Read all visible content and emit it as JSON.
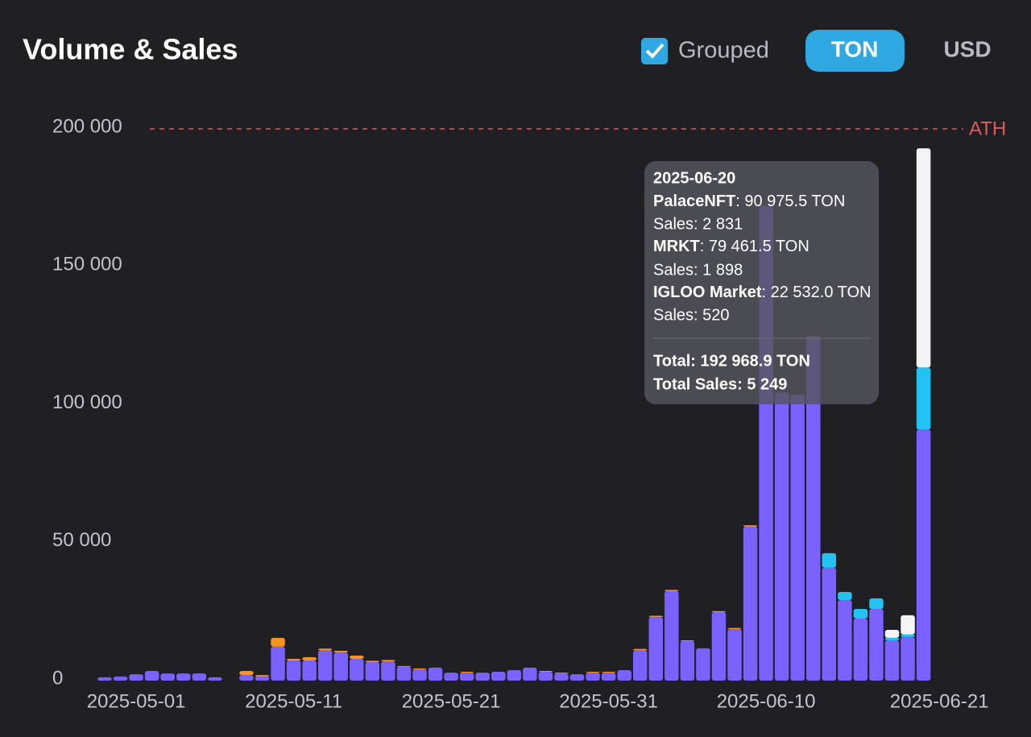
{
  "chart_data": {
    "type": "bar",
    "stacked": true,
    "title": "Volume & Sales",
    "controls": {
      "grouped": "Grouped",
      "ton": "TON",
      "usd": "USD"
    },
    "x": [
      "2025-04-29",
      "2025-04-30",
      "2025-05-01",
      "2025-05-02",
      "2025-05-03",
      "2025-05-04",
      "2025-05-05",
      "2025-05-06",
      "2025-05-07",
      "2025-05-08",
      "2025-05-09",
      "2025-05-10",
      "2025-05-11",
      "2025-05-12",
      "2025-05-13",
      "2025-05-14",
      "2025-05-15",
      "2025-05-16",
      "2025-05-17",
      "2025-05-18",
      "2025-05-19",
      "2025-05-20",
      "2025-05-21",
      "2025-05-22",
      "2025-05-23",
      "2025-05-24",
      "2025-05-25",
      "2025-05-26",
      "2025-05-27",
      "2025-05-28",
      "2025-05-29",
      "2025-05-30",
      "2025-05-31",
      "2025-06-01",
      "2025-06-02",
      "2025-06-03",
      "2025-06-04",
      "2025-06-05",
      "2025-06-06",
      "2025-06-07",
      "2025-06-08",
      "2025-06-09",
      "2025-06-10",
      "2025-06-11",
      "2025-06-12",
      "2025-06-13",
      "2025-06-14",
      "2025-06-15",
      "2025-06-16",
      "2025-06-17",
      "2025-06-18",
      "2025-06-19",
      "2025-06-20"
    ],
    "xticks": [
      "2025-05-01",
      "2025-05-11",
      "2025-05-21",
      "2025-05-31",
      "2025-06-10",
      "2025-06-21"
    ],
    "ylim": [
      0,
      200000
    ],
    "yticks": [
      0,
      {
        "value": 50000,
        "label": "50 000"
      },
      {
        "value": 100000,
        "label": "100 000"
      },
      {
        "value": 150000,
        "label": "150 000"
      },
      {
        "value": 200000,
        "label": "200 000"
      }
    ],
    "ath": {
      "label": "ATH",
      "value": 200000,
      "color": "#e05a5a"
    },
    "series": [
      {
        "name": "PalaceNFT",
        "color": "#7b61ff",
        "values": [
          1200,
          1500,
          2300,
          3500,
          2600,
          2600,
          2600,
          1200,
          0,
          2000,
          1500,
          12300,
          7300,
          7300,
          11000,
          10200,
          7900,
          6700,
          7000,
          5000,
          4100,
          4700,
          2900,
          2900,
          2900,
          3200,
          3800,
          4700,
          3200,
          2600,
          2300,
          2900,
          2900,
          3800,
          11000,
          23000,
          32400,
          14300,
          11700,
          24800,
          18700,
          55800,
          172000,
          104500,
          103600,
          125000,
          40900,
          29200,
          22500,
          26000,
          14600,
          15800,
          90975.5
        ]
      },
      {
        "color": "#f7931e",
        "values": [
          0,
          0,
          0,
          0,
          0,
          0,
          0,
          0,
          0,
          1500,
          500,
          3200,
          600,
          1200,
          600,
          600,
          1200,
          500,
          500,
          300,
          300,
          0,
          0,
          300,
          0,
          0,
          0,
          0,
          300,
          300,
          0,
          300,
          300,
          0,
          500,
          500,
          500,
          300,
          0,
          400,
          400,
          500,
          0,
          0,
          0,
          0,
          0,
          0,
          0,
          0,
          0,
          0,
          0
        ]
      },
      {
        "name": "IGLOO Market",
        "color": "#22c3f3",
        "values": [
          0,
          0,
          0,
          0,
          0,
          0,
          0,
          0,
          0,
          0,
          0,
          0,
          0,
          0,
          0,
          0,
          0,
          0,
          0,
          0,
          0,
          0,
          0,
          0,
          0,
          0,
          0,
          0,
          0,
          0,
          0,
          0,
          0,
          0,
          0,
          0,
          0,
          0,
          0,
          0,
          0,
          0,
          0,
          0,
          0,
          0,
          5300,
          2900,
          3500,
          3800,
          900,
          900,
          22532
        ]
      },
      {
        "name": "MRKT",
        "color": "#f4f4f6",
        "values": [
          0,
          0,
          0,
          0,
          0,
          0,
          0,
          0,
          0,
          0,
          0,
          0,
          0,
          0,
          0,
          0,
          0,
          0,
          0,
          0,
          0,
          0,
          0,
          0,
          0,
          0,
          0,
          0,
          0,
          0,
          0,
          0,
          0,
          0,
          0,
          0,
          0,
          0,
          0,
          0,
          0,
          0,
          0,
          0,
          0,
          0,
          0,
          0,
          0,
          0,
          2900,
          7000,
          79461.5
        ]
      }
    ],
    "tooltip": {
      "date": "2025-06-20",
      "entries": [
        {
          "value": ": 90 975.5 TON",
          "sales": "Sales: 2 831"
        },
        {
          "value": ": 79 461.5 TON",
          "sales": "Sales: 1 898"
        },
        {
          "value": ": 22 532.0 TON",
          "sales": "Sales: 520"
        }
      ],
      "total": "Total: 192 968.9 TON",
      "total_sales": "Total Sales: 5 249"
    }
  }
}
